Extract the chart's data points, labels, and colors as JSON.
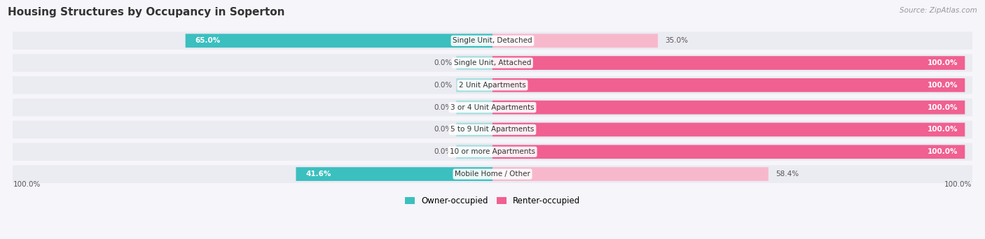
{
  "title": "Housing Structures by Occupancy in Soperton",
  "source": "Source: ZipAtlas.com",
  "categories": [
    "Single Unit, Detached",
    "Single Unit, Attached",
    "2 Unit Apartments",
    "3 or 4 Unit Apartments",
    "5 to 9 Unit Apartments",
    "10 or more Apartments",
    "Mobile Home / Other"
  ],
  "owner_pct": [
    65.0,
    0.0,
    0.0,
    0.0,
    0.0,
    0.0,
    41.6
  ],
  "renter_pct": [
    35.0,
    100.0,
    100.0,
    100.0,
    100.0,
    100.0,
    58.4
  ],
  "owner_color": "#3bbfbf",
  "owner_color_light": "#a8dede",
  "renter_color": "#f06090",
  "renter_color_light": "#f8b8cc",
  "row_bg_color": "#ebebf2",
  "owner_label": "Owner-occupied",
  "renter_label": "Renter-occupied",
  "background_color": "#f5f5fa",
  "title_color": "#333333",
  "source_color": "#999999",
  "label_color_dark": "#555555",
  "label_color_white": "#ffffff"
}
